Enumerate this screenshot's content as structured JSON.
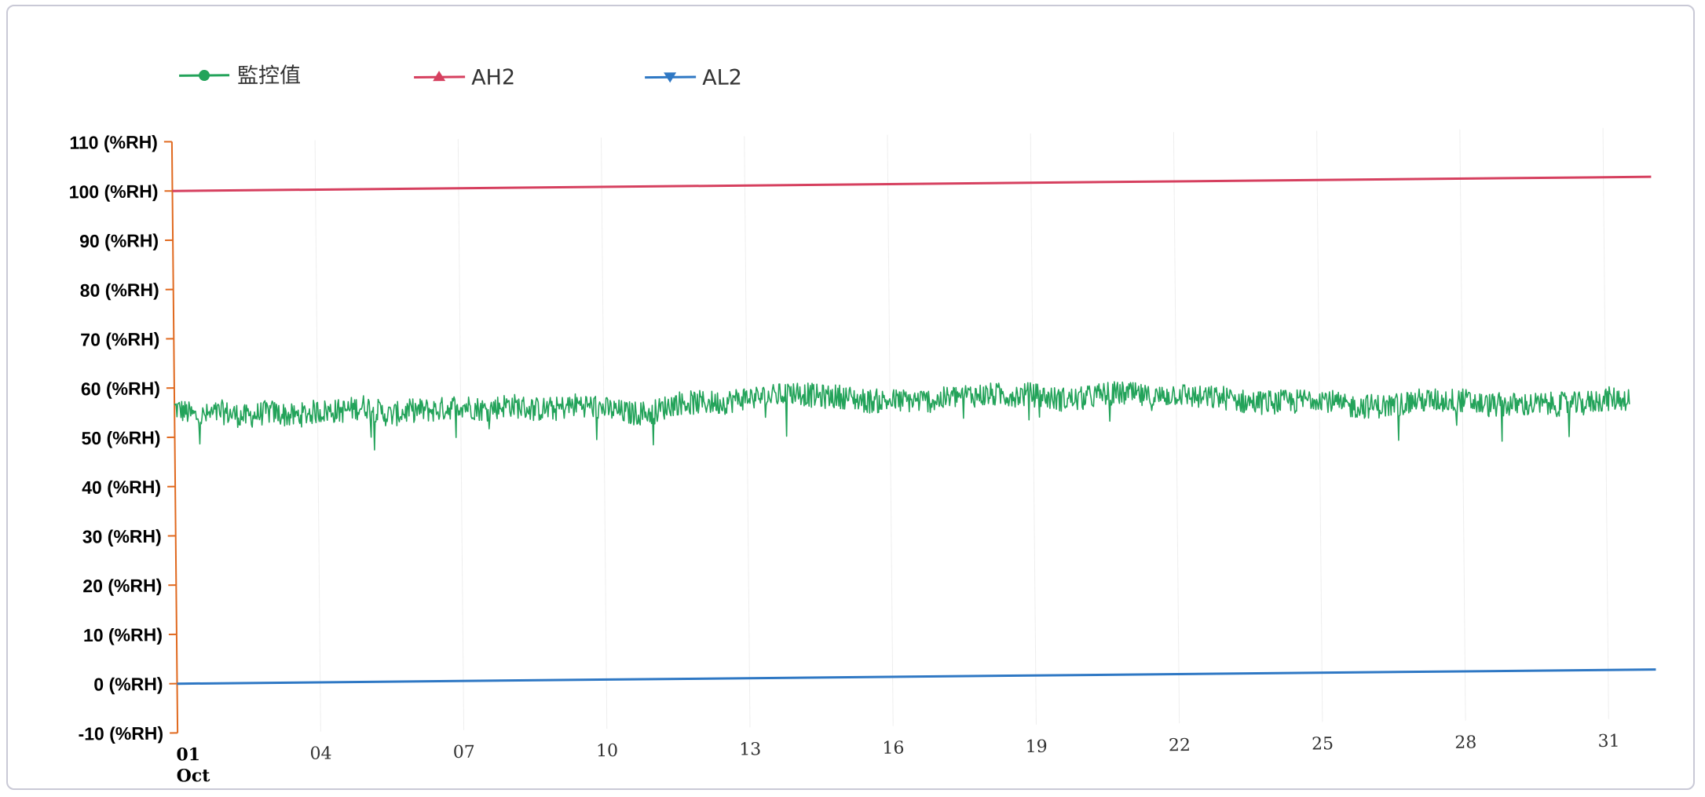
{
  "chart_data": {
    "type": "line",
    "title": "",
    "xlabel": "",
    "ylabel": "",
    "ylim": [
      -10,
      110
    ],
    "y_ticks": [
      110,
      100,
      90,
      80,
      70,
      60,
      50,
      40,
      30,
      20,
      10,
      0,
      -10
    ],
    "y_tick_labels": [
      "110 (%RH)",
      "100 (%RH)",
      "90 (%RH)",
      "80 (%RH)",
      "70 (%RH)",
      "60 (%RH)",
      "50 (%RH)",
      "40 (%RH)",
      "30 (%RH)",
      "20 (%RH)",
      "10 (%RH)",
      "0 (%RH)",
      "-10 (%RH)"
    ],
    "x_ticks": [
      1,
      4,
      7,
      10,
      13,
      16,
      19,
      22,
      25,
      28,
      31
    ],
    "x_tick_labels": [
      "01",
      "04",
      "07",
      "10",
      "13",
      "16",
      "19",
      "22",
      "25",
      "28",
      "31"
    ],
    "x_first_sublabel": "Oct",
    "xlim": [
      1,
      32
    ],
    "grid": "vertical light",
    "legend_position": "top-left",
    "series": [
      {
        "name": "監控值",
        "color": "#23a35a",
        "marker": "circle",
        "x": [
          1,
          1.5,
          2,
          2.5,
          3,
          3.5,
          4,
          4.5,
          5,
          5.5,
          6,
          6.5,
          7,
          7.5,
          8,
          8.5,
          9,
          9.5,
          10,
          10.5,
          11,
          11.5,
          12,
          12.5,
          13,
          13.5,
          14,
          14.5,
          15,
          15.5,
          16,
          16.5,
          17,
          17.5,
          18,
          18.5,
          19,
          19.5,
          20,
          20.5,
          21,
          21.5,
          22,
          22.5,
          23,
          23.5,
          24,
          24.5,
          25,
          25.5,
          26,
          26.5,
          27,
          27.5,
          28,
          28.5,
          29,
          29.5,
          30,
          30.5,
          31,
          31.5
        ],
        "values": [
          56,
          54,
          55,
          54,
          55,
          54,
          55,
          55,
          56,
          54,
          55,
          55,
          56,
          55,
          56,
          55,
          55,
          56,
          55,
          54,
          54,
          56,
          56,
          56,
          57,
          57,
          58,
          57,
          57,
          56,
          56,
          56,
          56,
          57,
          57,
          57,
          57,
          56,
          56,
          57,
          57,
          56,
          57,
          56,
          56,
          55,
          55,
          55,
          56,
          54,
          54,
          54,
          55,
          55,
          55,
          54,
          54,
          54,
          54,
          54,
          55,
          55
        ],
        "noise_amplitude": 2.5
      },
      {
        "name": "AH2",
        "color": "#d6405f",
        "marker": "triangle-up",
        "x": [
          1,
          32
        ],
        "values": [
          100,
          100
        ]
      },
      {
        "name": "AL2",
        "color": "#2f78c4",
        "marker": "triangle-down",
        "x": [
          1,
          32
        ],
        "values": [
          0,
          0
        ]
      }
    ]
  }
}
